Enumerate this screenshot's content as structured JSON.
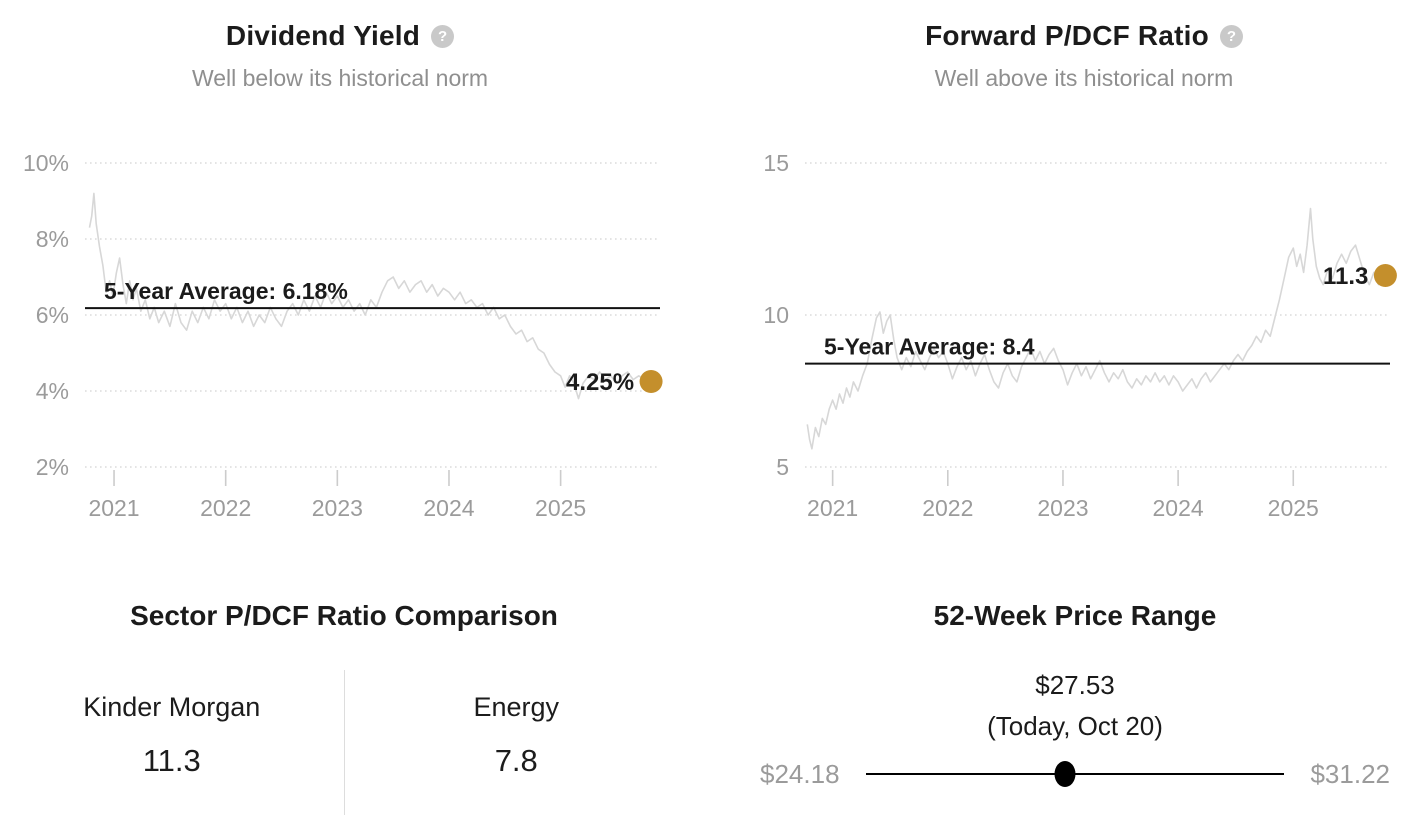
{
  "help_icon_glyph": "?",
  "colors": {
    "accent_gold": "#c48f2c",
    "series_line": "#d7d7d7",
    "grid_dots": "#dcdcdc",
    "tick_mark": "#cccccc",
    "axis_text": "#9b9b9b",
    "muted_text": "#8f8f8f",
    "title_text": "#1b1b1b",
    "average_line": "#111111",
    "divider": "#dddddd",
    "help_icon_bg": "#c9c9c9"
  },
  "chart_data": [
    {
      "type": "line",
      "title": "Dividend Yield",
      "subtitle": "Well below its historical norm",
      "unit": "%",
      "grid": true,
      "legend": "none",
      "x_ticks": [
        2021,
        2022,
        2023,
        2024,
        2025
      ],
      "y_ticks": [
        {
          "v": 10,
          "label": "10%"
        },
        {
          "v": 8,
          "label": "8%"
        },
        {
          "v": 6,
          "label": "6%"
        },
        {
          "v": 4,
          "label": "4%"
        },
        {
          "v": 2,
          "label": "2%"
        }
      ],
      "xlim": [
        2020.74,
        2025.89
      ],
      "ylim": [
        2,
        10
      ],
      "average": {
        "value": 6.18,
        "label": "5-Year Average: 6.18%"
      },
      "current": {
        "x": 2025.81,
        "value": 4.25,
        "label": "4.25%"
      },
      "series": [
        [
          2020.78,
          8.3
        ],
        [
          2020.8,
          8.6
        ],
        [
          2020.82,
          9.2
        ],
        [
          2020.84,
          8.4
        ],
        [
          2020.87,
          7.8
        ],
        [
          2020.9,
          7.3
        ],
        [
          2020.93,
          6.6
        ],
        [
          2020.96,
          6.9
        ],
        [
          2020.99,
          6.5
        ],
        [
          2021.02,
          7.1
        ],
        [
          2021.05,
          7.5
        ],
        [
          2021.08,
          6.8
        ],
        [
          2021.11,
          6.3
        ],
        [
          2021.14,
          6.9
        ],
        [
          2021.17,
          6.4
        ],
        [
          2021.2,
          6.7
        ],
        [
          2021.24,
          6.1
        ],
        [
          2021.28,
          6.4
        ],
        [
          2021.32,
          5.9
        ],
        [
          2021.36,
          6.2
        ],
        [
          2021.4,
          5.8
        ],
        [
          2021.45,
          6.1
        ],
        [
          2021.5,
          5.7
        ],
        [
          2021.55,
          6.3
        ],
        [
          2021.6,
          5.8
        ],
        [
          2021.65,
          5.6
        ],
        [
          2021.7,
          6.1
        ],
        [
          2021.75,
          5.8
        ],
        [
          2021.8,
          6.2
        ],
        [
          2021.85,
          5.9
        ],
        [
          2021.9,
          6.4
        ],
        [
          2021.95,
          6.1
        ],
        [
          2022.0,
          6.3
        ],
        [
          2022.05,
          5.9
        ],
        [
          2022.1,
          6.2
        ],
        [
          2022.15,
          5.8
        ],
        [
          2022.2,
          6.1
        ],
        [
          2022.25,
          5.7
        ],
        [
          2022.3,
          6.0
        ],
        [
          2022.35,
          5.8
        ],
        [
          2022.4,
          6.2
        ],
        [
          2022.45,
          5.9
        ],
        [
          2022.5,
          5.7
        ],
        [
          2022.55,
          6.1
        ],
        [
          2022.6,
          6.3
        ],
        [
          2022.65,
          6.0
        ],
        [
          2022.7,
          6.4
        ],
        [
          2022.75,
          6.1
        ],
        [
          2022.8,
          6.5
        ],
        [
          2022.85,
          6.2
        ],
        [
          2022.9,
          6.6
        ],
        [
          2022.95,
          6.3
        ],
        [
          2023.0,
          6.5
        ],
        [
          2023.05,
          6.2
        ],
        [
          2023.1,
          6.4
        ],
        [
          2023.15,
          6.1
        ],
        [
          2023.2,
          6.3
        ],
        [
          2023.25,
          6.0
        ],
        [
          2023.3,
          6.4
        ],
        [
          2023.35,
          6.2
        ],
        [
          2023.4,
          6.6
        ],
        [
          2023.45,
          6.9
        ],
        [
          2023.5,
          7.0
        ],
        [
          2023.55,
          6.7
        ],
        [
          2023.6,
          6.9
        ],
        [
          2023.65,
          6.6
        ],
        [
          2023.7,
          6.8
        ],
        [
          2023.75,
          6.9
        ],
        [
          2023.8,
          6.6
        ],
        [
          2023.85,
          6.8
        ],
        [
          2023.9,
          6.5
        ],
        [
          2023.95,
          6.7
        ],
        [
          2024.0,
          6.6
        ],
        [
          2024.05,
          6.4
        ],
        [
          2024.1,
          6.6
        ],
        [
          2024.15,
          6.3
        ],
        [
          2024.2,
          6.4
        ],
        [
          2024.25,
          6.2
        ],
        [
          2024.3,
          6.3
        ],
        [
          2024.35,
          6.0
        ],
        [
          2024.4,
          6.2
        ],
        [
          2024.45,
          5.9
        ],
        [
          2024.5,
          6.0
        ],
        [
          2024.55,
          5.7
        ],
        [
          2024.6,
          5.5
        ],
        [
          2024.65,
          5.6
        ],
        [
          2024.7,
          5.3
        ],
        [
          2024.75,
          5.4
        ],
        [
          2024.8,
          5.1
        ],
        [
          2024.85,
          5.0
        ],
        [
          2024.9,
          4.7
        ],
        [
          2024.95,
          4.5
        ],
        [
          2025.0,
          4.4
        ],
        [
          2025.04,
          4.1
        ],
        [
          2025.08,
          4.4
        ],
        [
          2025.12,
          4.2
        ],
        [
          2025.16,
          3.8
        ],
        [
          2025.2,
          4.2
        ],
        [
          2025.25,
          4.4
        ],
        [
          2025.3,
          4.3
        ],
        [
          2025.35,
          4.5
        ],
        [
          2025.4,
          4.3
        ],
        [
          2025.45,
          4.4
        ],
        [
          2025.5,
          4.2
        ],
        [
          2025.55,
          4.4
        ],
        [
          2025.6,
          4.5
        ],
        [
          2025.65,
          4.3
        ],
        [
          2025.7,
          4.4
        ],
        [
          2025.75,
          4.3
        ],
        [
          2025.81,
          4.25
        ]
      ]
    },
    {
      "type": "line",
      "title": "Forward P/DCF Ratio",
      "subtitle": "Well above its historical norm",
      "unit": "",
      "grid": true,
      "legend": "none",
      "x_ticks": [
        2021,
        2022,
        2023,
        2024,
        2025
      ],
      "y_ticks": [
        {
          "v": 15,
          "label": "15"
        },
        {
          "v": 10,
          "label": "10"
        },
        {
          "v": 5,
          "label": "5"
        }
      ],
      "xlim": [
        2020.76,
        2025.84
      ],
      "ylim": [
        5,
        15
      ],
      "average": {
        "value": 8.4,
        "label": "5-Year Average: 8.4"
      },
      "current": {
        "x": 2025.8,
        "value": 11.3,
        "label": "11.3"
      },
      "series": [
        [
          2020.78,
          6.4
        ],
        [
          2020.8,
          5.9
        ],
        [
          2020.82,
          5.6
        ],
        [
          2020.85,
          6.3
        ],
        [
          2020.88,
          6.0
        ],
        [
          2020.91,
          6.6
        ],
        [
          2020.94,
          6.4
        ],
        [
          2020.97,
          6.9
        ],
        [
          2021.0,
          7.2
        ],
        [
          2021.03,
          6.9
        ],
        [
          2021.06,
          7.4
        ],
        [
          2021.09,
          7.1
        ],
        [
          2021.12,
          7.6
        ],
        [
          2021.15,
          7.3
        ],
        [
          2021.18,
          7.8
        ],
        [
          2021.22,
          7.5
        ],
        [
          2021.26,
          8.0
        ],
        [
          2021.3,
          8.4
        ],
        [
          2021.34,
          9.2
        ],
        [
          2021.38,
          9.9
        ],
        [
          2021.41,
          10.1
        ],
        [
          2021.44,
          9.4
        ],
        [
          2021.47,
          9.8
        ],
        [
          2021.5,
          10.0
        ],
        [
          2021.53,
          9.2
        ],
        [
          2021.56,
          8.6
        ],
        [
          2021.6,
          8.2
        ],
        [
          2021.64,
          8.6
        ],
        [
          2021.68,
          8.3
        ],
        [
          2021.72,
          8.8
        ],
        [
          2021.76,
          8.5
        ],
        [
          2021.8,
          8.2
        ],
        [
          2021.84,
          8.6
        ],
        [
          2021.88,
          8.9
        ],
        [
          2021.92,
          8.6
        ],
        [
          2021.96,
          8.8
        ],
        [
          2022.0,
          8.4
        ],
        [
          2022.04,
          7.9
        ],
        [
          2022.08,
          8.3
        ],
        [
          2022.12,
          8.6
        ],
        [
          2022.16,
          8.2
        ],
        [
          2022.2,
          8.5
        ],
        [
          2022.24,
          8.0
        ],
        [
          2022.28,
          8.4
        ],
        [
          2022.32,
          8.7
        ],
        [
          2022.36,
          8.2
        ],
        [
          2022.4,
          7.8
        ],
        [
          2022.44,
          7.6
        ],
        [
          2022.48,
          8.1
        ],
        [
          2022.52,
          8.4
        ],
        [
          2022.56,
          8.0
        ],
        [
          2022.6,
          7.8
        ],
        [
          2022.64,
          8.3
        ],
        [
          2022.68,
          8.6
        ],
        [
          2022.72,
          8.9
        ],
        [
          2022.76,
          8.5
        ],
        [
          2022.8,
          8.8
        ],
        [
          2022.84,
          8.4
        ],
        [
          2022.88,
          8.7
        ],
        [
          2022.92,
          8.9
        ],
        [
          2022.96,
          8.5
        ],
        [
          2023.0,
          8.2
        ],
        [
          2023.04,
          7.7
        ],
        [
          2023.08,
          8.1
        ],
        [
          2023.12,
          8.4
        ],
        [
          2023.16,
          8.0
        ],
        [
          2023.2,
          8.3
        ],
        [
          2023.24,
          7.9
        ],
        [
          2023.28,
          8.2
        ],
        [
          2023.32,
          8.5
        ],
        [
          2023.36,
          8.1
        ],
        [
          2023.4,
          7.8
        ],
        [
          2023.44,
          8.1
        ],
        [
          2023.48,
          7.9
        ],
        [
          2023.52,
          8.2
        ],
        [
          2023.56,
          7.8
        ],
        [
          2023.6,
          7.6
        ],
        [
          2023.64,
          7.9
        ],
        [
          2023.68,
          7.7
        ],
        [
          2023.72,
          8.0
        ],
        [
          2023.76,
          7.8
        ],
        [
          2023.8,
          8.1
        ],
        [
          2023.84,
          7.8
        ],
        [
          2023.88,
          8.0
        ],
        [
          2023.92,
          7.7
        ],
        [
          2023.96,
          8.0
        ],
        [
          2024.0,
          7.8
        ],
        [
          2024.04,
          7.5
        ],
        [
          2024.08,
          7.7
        ],
        [
          2024.12,
          7.9
        ],
        [
          2024.16,
          7.6
        ],
        [
          2024.2,
          7.9
        ],
        [
          2024.24,
          8.1
        ],
        [
          2024.28,
          7.8
        ],
        [
          2024.32,
          8.0
        ],
        [
          2024.36,
          8.2
        ],
        [
          2024.4,
          8.4
        ],
        [
          2024.44,
          8.2
        ],
        [
          2024.48,
          8.5
        ],
        [
          2024.52,
          8.7
        ],
        [
          2024.56,
          8.5
        ],
        [
          2024.6,
          8.8
        ],
        [
          2024.64,
          9.0
        ],
        [
          2024.68,
          9.3
        ],
        [
          2024.72,
          9.1
        ],
        [
          2024.76,
          9.5
        ],
        [
          2024.8,
          9.3
        ],
        [
          2024.84,
          9.9
        ],
        [
          2024.88,
          10.5
        ],
        [
          2024.92,
          11.2
        ],
        [
          2024.96,
          11.9
        ],
        [
          2025.0,
          12.2
        ],
        [
          2025.03,
          11.6
        ],
        [
          2025.06,
          12.0
        ],
        [
          2025.09,
          11.4
        ],
        [
          2025.12,
          12.3
        ],
        [
          2025.15,
          13.5
        ],
        [
          2025.17,
          12.5
        ],
        [
          2025.2,
          11.6
        ],
        [
          2025.23,
          11.2
        ],
        [
          2025.26,
          11.0
        ],
        [
          2025.3,
          11.5
        ],
        [
          2025.34,
          11.2
        ],
        [
          2025.38,
          11.7
        ],
        [
          2025.42,
          12.0
        ],
        [
          2025.46,
          11.7
        ],
        [
          2025.5,
          12.1
        ],
        [
          2025.54,
          12.3
        ],
        [
          2025.58,
          11.8
        ],
        [
          2025.62,
          11.3
        ],
        [
          2025.66,
          11.0
        ],
        [
          2025.7,
          11.4
        ],
        [
          2025.74,
          11.0
        ],
        [
          2025.8,
          11.3
        ]
      ]
    }
  ],
  "sector_comparison": {
    "title": "Sector P/DCF Ratio Comparison",
    "columns": [
      {
        "label": "Kinder Morgan",
        "value": "11.3"
      },
      {
        "label": "Energy",
        "value": "7.8"
      }
    ]
  },
  "price_range": {
    "title": "52-Week Price Range",
    "current_label": "$27.53",
    "current_subtitle": "(Today, Oct 20)",
    "low_label": "$24.18",
    "high_label": "$31.22",
    "low": 24.18,
    "high": 31.22,
    "current": 27.53
  }
}
